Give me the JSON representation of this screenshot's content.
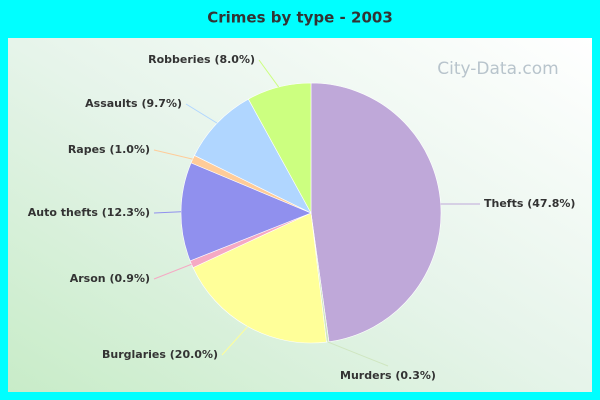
{
  "chart_data": {
    "type": "pie",
    "title": "Crimes by type - 2003",
    "watermark": "City-Data.com",
    "categories": [
      "Thefts",
      "Murders",
      "Burglaries",
      "Arson",
      "Auto thefts",
      "Rapes",
      "Assaults",
      "Robberies"
    ],
    "values": [
      47.8,
      0.3,
      20.0,
      0.9,
      12.3,
      1.0,
      9.7,
      8.0
    ],
    "value_labels": [
      "(47.8%)",
      "(0.3%)",
      "(20.0%)",
      "(0.9%)",
      "(12.3%)",
      "(1.0%)",
      "(9.7%)",
      "(8.0%)"
    ],
    "colors": [
      "#bfa8d9",
      "#cfe6c0",
      "#ffff99",
      "#f5a9c4",
      "#9090ee",
      "#ffcc99",
      "#b0d6ff",
      "#ccff80"
    ]
  }
}
